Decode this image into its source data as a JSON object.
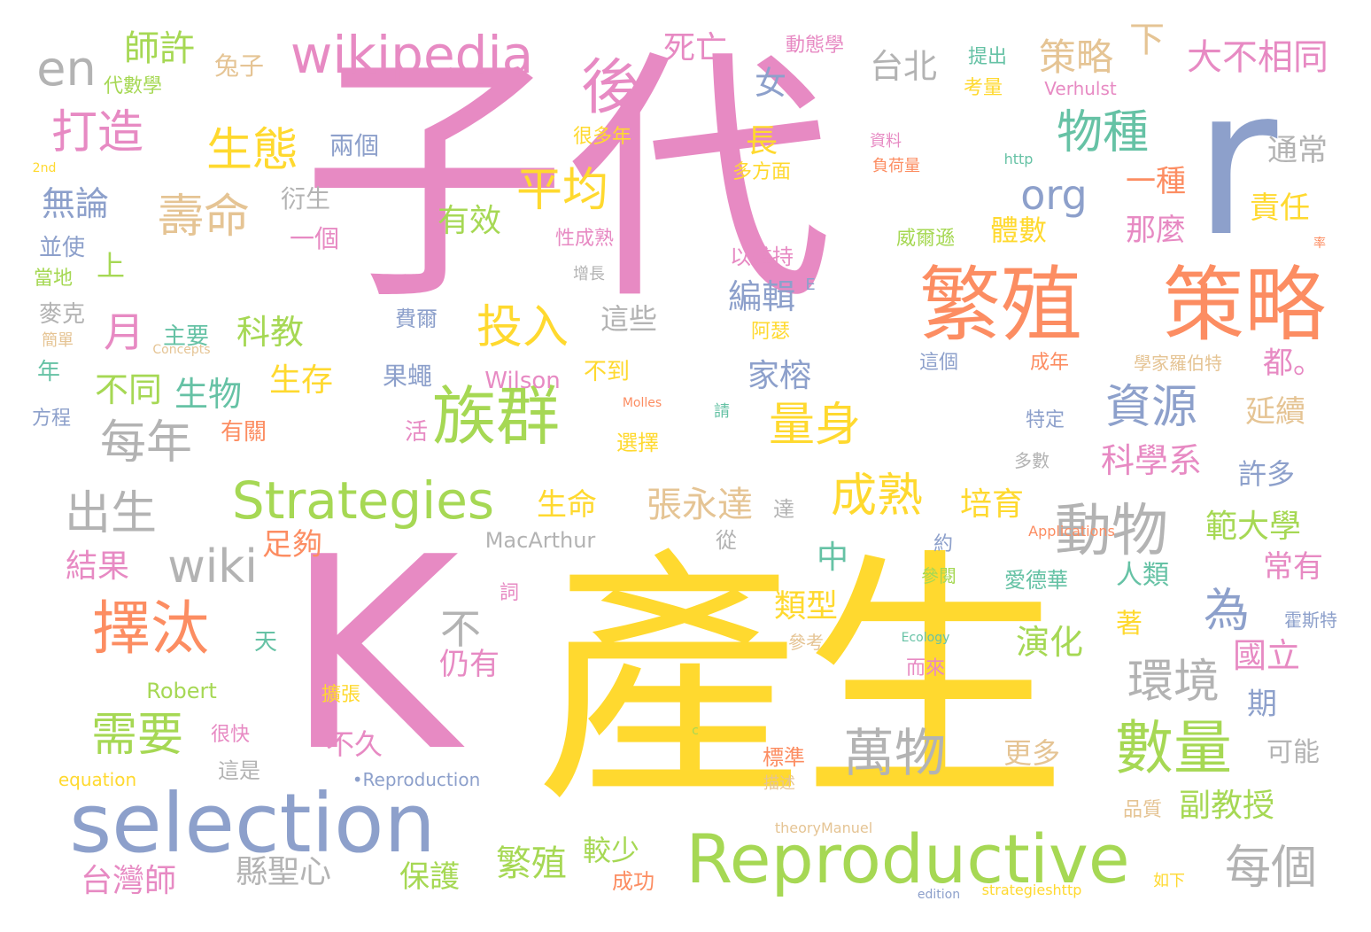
{
  "palette": {
    "pink": "#e78ac3",
    "yellow": "#ffd92f",
    "blue": "#8da0cb",
    "green": "#a6d854",
    "orange": "#fc8d62",
    "tan": "#e5c494",
    "gray": "#b3b3b3",
    "teal": "#66c2a5"
  },
  "words": [
    {
      "text": "子代",
      "color": "pink"
    },
    {
      "text": "產生",
      "color": "yellow"
    },
    {
      "text": "K",
      "color": "pink"
    },
    {
      "text": "r",
      "color": "blue"
    },
    {
      "text": "繁殖",
      "color": "orange"
    },
    {
      "text": "策略",
      "color": "orange"
    },
    {
      "text": "selection",
      "color": "blue"
    },
    {
      "text": "Reproductive",
      "color": "green"
    },
    {
      "text": "wikipedia",
      "color": "pink"
    },
    {
      "text": "後",
      "color": "pink"
    },
    {
      "text": "族群",
      "color": "green"
    },
    {
      "text": "Strategies",
      "color": "green"
    },
    {
      "text": "擇汰",
      "color": "orange"
    },
    {
      "text": "數量",
      "color": "green"
    },
    {
      "text": "動物",
      "color": "gray"
    },
    {
      "text": "萬物",
      "color": "gray"
    },
    {
      "text": "物種",
      "color": "teal"
    },
    {
      "text": "資源",
      "color": "blue"
    },
    {
      "text": "en",
      "color": "gray"
    },
    {
      "text": "打造",
      "color": "pink"
    },
    {
      "text": "生態",
      "color": "yellow"
    },
    {
      "text": "壽命",
      "color": "tan"
    },
    {
      "text": "平均",
      "color": "yellow"
    },
    {
      "text": "投入",
      "color": "yellow"
    },
    {
      "text": "成熟",
      "color": "yellow"
    },
    {
      "text": "每年",
      "color": "gray"
    },
    {
      "text": "出生",
      "color": "gray"
    },
    {
      "text": "wiki",
      "color": "gray"
    },
    {
      "text": "需要",
      "color": "green"
    },
    {
      "text": "量身",
      "color": "yellow"
    },
    {
      "text": "每個",
      "color": "gray"
    },
    {
      "text": "環境",
      "color": "gray"
    },
    {
      "text": "為",
      "color": "blue"
    },
    {
      "text": "不",
      "color": "gray"
    },
    {
      "text": "org",
      "color": "blue"
    },
    {
      "text": "月",
      "color": "pink"
    },
    {
      "text": "策略",
      "color": "tan"
    },
    {
      "text": "下",
      "color": "tan"
    },
    {
      "text": "大不相同",
      "color": "pink"
    },
    {
      "text": "台北",
      "color": "gray"
    },
    {
      "text": "師許",
      "color": "green"
    },
    {
      "text": "死亡",
      "color": "pink"
    },
    {
      "text": "兔子",
      "color": "tan"
    },
    {
      "text": "女",
      "color": "blue"
    },
    {
      "text": "長",
      "color": "yellow"
    },
    {
      "text": "一種",
      "color": "orange"
    },
    {
      "text": "責任",
      "color": "yellow"
    },
    {
      "text": "通常",
      "color": "gray"
    },
    {
      "text": "那麼",
      "color": "pink"
    },
    {
      "text": "體數",
      "color": "yellow"
    },
    {
      "text": "有效",
      "color": "green"
    },
    {
      "text": "科教",
      "color": "green"
    },
    {
      "text": "生物",
      "color": "teal"
    },
    {
      "text": "生存",
      "color": "yellow"
    },
    {
      "text": "不同",
      "color": "green"
    },
    {
      "text": "編輯",
      "color": "blue"
    },
    {
      "text": "家榕",
      "color": "blue"
    },
    {
      "text": "這些",
      "color": "gray"
    },
    {
      "text": "延續",
      "color": "tan"
    },
    {
      "text": "都。",
      "color": "pink"
    },
    {
      "text": "科學系",
      "color": "pink"
    },
    {
      "text": "許多",
      "color": "blue"
    },
    {
      "text": "張永達",
      "color": "tan"
    },
    {
      "text": "生命",
      "color": "yellow"
    },
    {
      "text": "培育",
      "color": "yellow"
    },
    {
      "text": "範大學",
      "color": "green"
    },
    {
      "text": "常有",
      "color": "pink"
    },
    {
      "text": "結果",
      "color": "pink"
    },
    {
      "text": "足夠",
      "color": "orange"
    },
    {
      "text": "中",
      "color": "teal"
    },
    {
      "text": "類型",
      "color": "yellow"
    },
    {
      "text": "演化",
      "color": "green"
    },
    {
      "text": "國立",
      "color": "pink"
    },
    {
      "text": "期",
      "color": "blue"
    },
    {
      "text": "人類",
      "color": "teal"
    },
    {
      "text": "著",
      "color": "yellow"
    },
    {
      "text": "仍有",
      "color": "pink"
    },
    {
      "text": "不久",
      "color": "pink"
    },
    {
      "text": "更多",
      "color": "tan"
    },
    {
      "text": "可能",
      "color": "gray"
    },
    {
      "text": "副教授",
      "color": "green"
    },
    {
      "text": "繁殖",
      "color": "green"
    },
    {
      "text": "較少",
      "color": "green"
    },
    {
      "text": "保護",
      "color": "green"
    },
    {
      "text": "縣聖心",
      "color": "gray"
    },
    {
      "text": "台灣師",
      "color": "pink"
    },
    {
      "text": "無論",
      "color": "blue"
    },
    {
      "text": "上",
      "color": "green"
    },
    {
      "text": "兩個",
      "color": "blue"
    },
    {
      "text": "衍生",
      "color": "gray"
    },
    {
      "text": "一個",
      "color": "pink"
    },
    {
      "text": "並使",
      "color": "blue"
    },
    {
      "text": "當地",
      "color": "green"
    },
    {
      "text": "麥克",
      "color": "gray"
    },
    {
      "text": "簡單",
      "color": "tan"
    },
    {
      "text": "年",
      "color": "teal"
    },
    {
      "text": "方程",
      "color": "blue"
    },
    {
      "text": "主要",
      "color": "teal"
    },
    {
      "text": "費爾",
      "color": "blue"
    },
    {
      "text": "果蠅",
      "color": "blue"
    },
    {
      "text": "Wilson",
      "color": "pink"
    },
    {
      "text": "不到",
      "color": "yellow"
    },
    {
      "text": "有關",
      "color": "orange"
    },
    {
      "text": "活",
      "color": "pink"
    },
    {
      "text": "選擇",
      "color": "yellow"
    },
    {
      "text": "Molles",
      "color": "orange"
    },
    {
      "text": "請",
      "color": "teal"
    },
    {
      "text": "MacArthur",
      "color": "gray"
    },
    {
      "text": "從",
      "color": "gray"
    },
    {
      "text": "達",
      "color": "gray"
    },
    {
      "text": "約",
      "color": "blue"
    },
    {
      "text": "參閱",
      "color": "green"
    },
    {
      "text": "愛德華",
      "color": "teal"
    },
    {
      "text": "詞",
      "color": "pink"
    },
    {
      "text": "Applications",
      "color": "orange"
    },
    {
      "text": "天",
      "color": "teal"
    },
    {
      "text": "Robert",
      "color": "green"
    },
    {
      "text": "很快",
      "color": "pink"
    },
    {
      "text": "這是",
      "color": "gray"
    },
    {
      "text": "擴張",
      "color": "yellow"
    },
    {
      "text": "equation",
      "color": "yellow"
    },
    {
      "text": "•Reproduction",
      "color": "blue"
    },
    {
      "text": "c",
      "color": "green"
    },
    {
      "text": "標準",
      "color": "orange"
    },
    {
      "text": "描述",
      "color": "tan"
    },
    {
      "text": "品質",
      "color": "tan"
    },
    {
      "text": "如下",
      "color": "yellow"
    },
    {
      "text": "theoryManuel",
      "color": "tan"
    },
    {
      "text": "edition",
      "color": "blue"
    },
    {
      "text": "strategieshttp",
      "color": "yellow"
    },
    {
      "text": "成功",
      "color": "orange"
    },
    {
      "text": "霍斯特",
      "color": "blue"
    },
    {
      "text": "Ecology",
      "color": "teal"
    },
    {
      "text": "參考",
      "color": "tan"
    },
    {
      "text": "而來",
      "color": "pink"
    },
    {
      "text": "代數學",
      "color": "green"
    },
    {
      "text": "2nd",
      "color": "yellow"
    },
    {
      "text": "動態學",
      "color": "pink"
    },
    {
      "text": "提出",
      "color": "teal"
    },
    {
      "text": "考量",
      "color": "yellow"
    },
    {
      "text": "Verhulst",
      "color": "pink"
    },
    {
      "text": "資料",
      "color": "pink"
    },
    {
      "text": "負荷量",
      "color": "orange"
    },
    {
      "text": "http",
      "color": "teal"
    },
    {
      "text": "多方面",
      "color": "yellow"
    },
    {
      "text": "很多年",
      "color": "yellow"
    },
    {
      "text": "性成熟",
      "color": "pink"
    },
    {
      "text": "以維持",
      "color": "pink"
    },
    {
      "text": "增長",
      "color": "gray"
    },
    {
      "text": "E",
      "color": "blue"
    },
    {
      "text": "阿瑟",
      "color": "yellow"
    },
    {
      "text": "這個",
      "color": "blue"
    },
    {
      "text": "成年",
      "color": "orange"
    },
    {
      "text": "學家羅伯特",
      "color": "tan"
    },
    {
      "text": "特定",
      "color": "blue"
    },
    {
      "text": "多數",
      "color": "gray"
    },
    {
      "text": "威爾遜",
      "color": "green"
    },
    {
      "text": "Concepts",
      "color": "tan"
    },
    {
      "text": "率",
      "color": "orange"
    }
  ]
}
